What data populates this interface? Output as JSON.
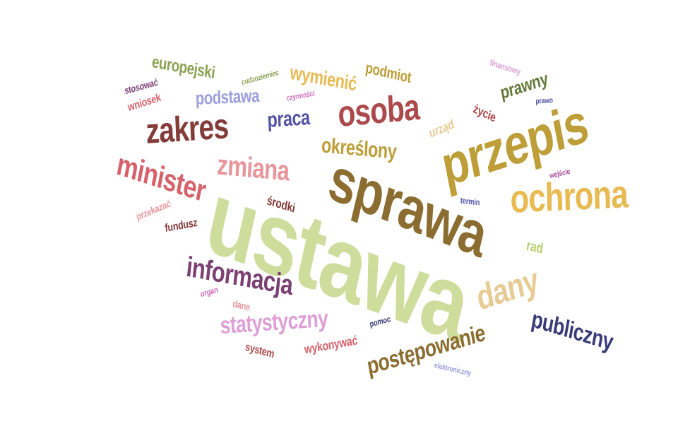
{
  "words": [
    {
      "text": "ustawa",
      "color": "#cedc9c"
    },
    {
      "text": "sprawa",
      "color": "#8b6d31"
    },
    {
      "text": "przepis",
      "color": "#bd9e38"
    },
    {
      "text": "ochrona",
      "color": "#e7ba52"
    },
    {
      "text": "osoba",
      "color": "#ad494a"
    },
    {
      "text": "zakres",
      "color": "#843c39"
    },
    {
      "text": "minister",
      "color": "#d6616b"
    },
    {
      "text": "zmiana",
      "color": "#e7969c"
    },
    {
      "text": "informacja",
      "color": "#7b4173"
    },
    {
      "text": "dany",
      "color": "#e7cb94"
    },
    {
      "text": "publiczny",
      "color": "#393b79"
    },
    {
      "text": "postępowanie",
      "color": "#8b6d31"
    },
    {
      "text": "statystyczny",
      "color": "#de9ed6"
    },
    {
      "text": "określony",
      "color": "#bd9e38"
    },
    {
      "text": "praca",
      "color": "#5254a3"
    },
    {
      "text": "podstawa",
      "color": "#9c9ede"
    },
    {
      "text": "wymienić",
      "color": "#e7ba52"
    },
    {
      "text": "europejski",
      "color": "#8ca252"
    },
    {
      "text": "podmiot",
      "color": "#bd9e38"
    },
    {
      "text": "prawny",
      "color": "#637939"
    },
    {
      "text": "życie",
      "color": "#ad494a"
    },
    {
      "text": "urząd",
      "color": "#e7cb94"
    },
    {
      "text": "finansowy",
      "color": "#de9ed6"
    },
    {
      "text": "prawo",
      "color": "#5254a3"
    },
    {
      "text": "cudzoziemiec",
      "color": "#8ca252"
    },
    {
      "text": "czynności",
      "color": "#ce6dbd"
    },
    {
      "text": "stosować",
      "color": "#7b4173"
    },
    {
      "text": "wniosek",
      "color": "#d6616b"
    },
    {
      "text": "środki",
      "color": "#843c39"
    },
    {
      "text": "przekazać",
      "color": "#e7969c"
    },
    {
      "text": "fundusz",
      "color": "#843c39"
    },
    {
      "text": "wejście",
      "color": "#a55194"
    },
    {
      "text": "termin",
      "color": "#5254a3"
    },
    {
      "text": "rad",
      "color": "#b5cf6b"
    },
    {
      "text": "organ",
      "color": "#ce6dbd"
    },
    {
      "text": "dane",
      "color": "#e7969c"
    },
    {
      "text": "pomoc",
      "color": "#393b79"
    },
    {
      "text": "wykonywać",
      "color": "#d6616b"
    },
    {
      "text": "system",
      "color": "#ad494a"
    },
    {
      "text": "elektroniczny",
      "color": "#9c9ede"
    }
  ]
}
